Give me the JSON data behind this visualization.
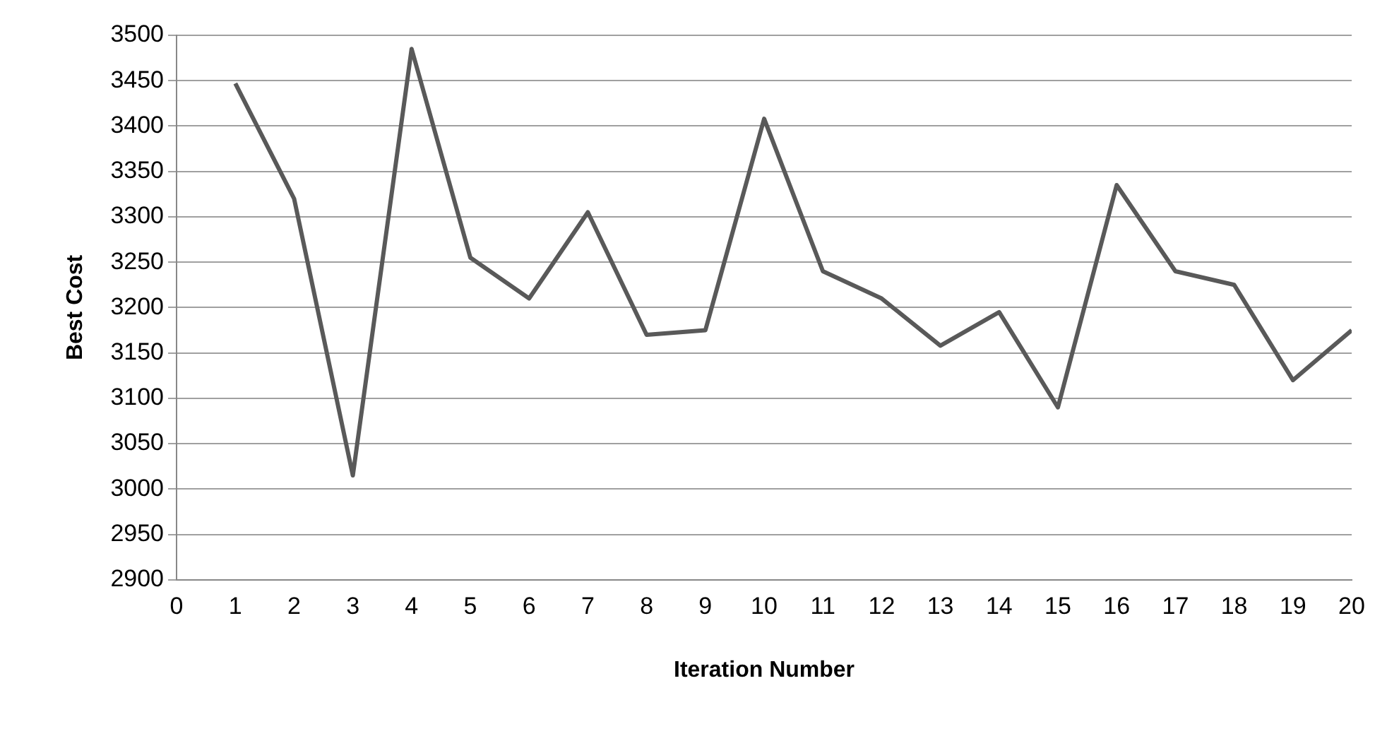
{
  "chart_data": {
    "type": "line",
    "xlabel": "Iteration Number",
    "ylabel": "Best Cost",
    "x": [
      1,
      2,
      3,
      4,
      5,
      6,
      7,
      8,
      9,
      10,
      11,
      12,
      13,
      14,
      15,
      16,
      17,
      18,
      19,
      20
    ],
    "series": [
      {
        "color": "#595959",
        "values": [
          3447,
          3320,
          3015,
          3485,
          3255,
          3210,
          3305,
          3170,
          3175,
          3408,
          3240,
          3210,
          3158,
          3195,
          3090,
          3335,
          3240,
          3225,
          3120,
          3175
        ]
      }
    ],
    "xlim": [
      0,
      20
    ],
    "xticks": [
      0,
      1,
      2,
      3,
      4,
      5,
      6,
      7,
      8,
      9,
      10,
      11,
      12,
      13,
      14,
      15,
      16,
      17,
      18,
      19,
      20
    ],
    "ylim": [
      2900,
      3500
    ],
    "yticks": [
      2900,
      2950,
      3000,
      3050,
      3100,
      3150,
      3200,
      3250,
      3300,
      3350,
      3400,
      3450,
      3500
    ],
    "grid": "y",
    "legend": false,
    "marker": "none",
    "line_style": "solid"
  }
}
